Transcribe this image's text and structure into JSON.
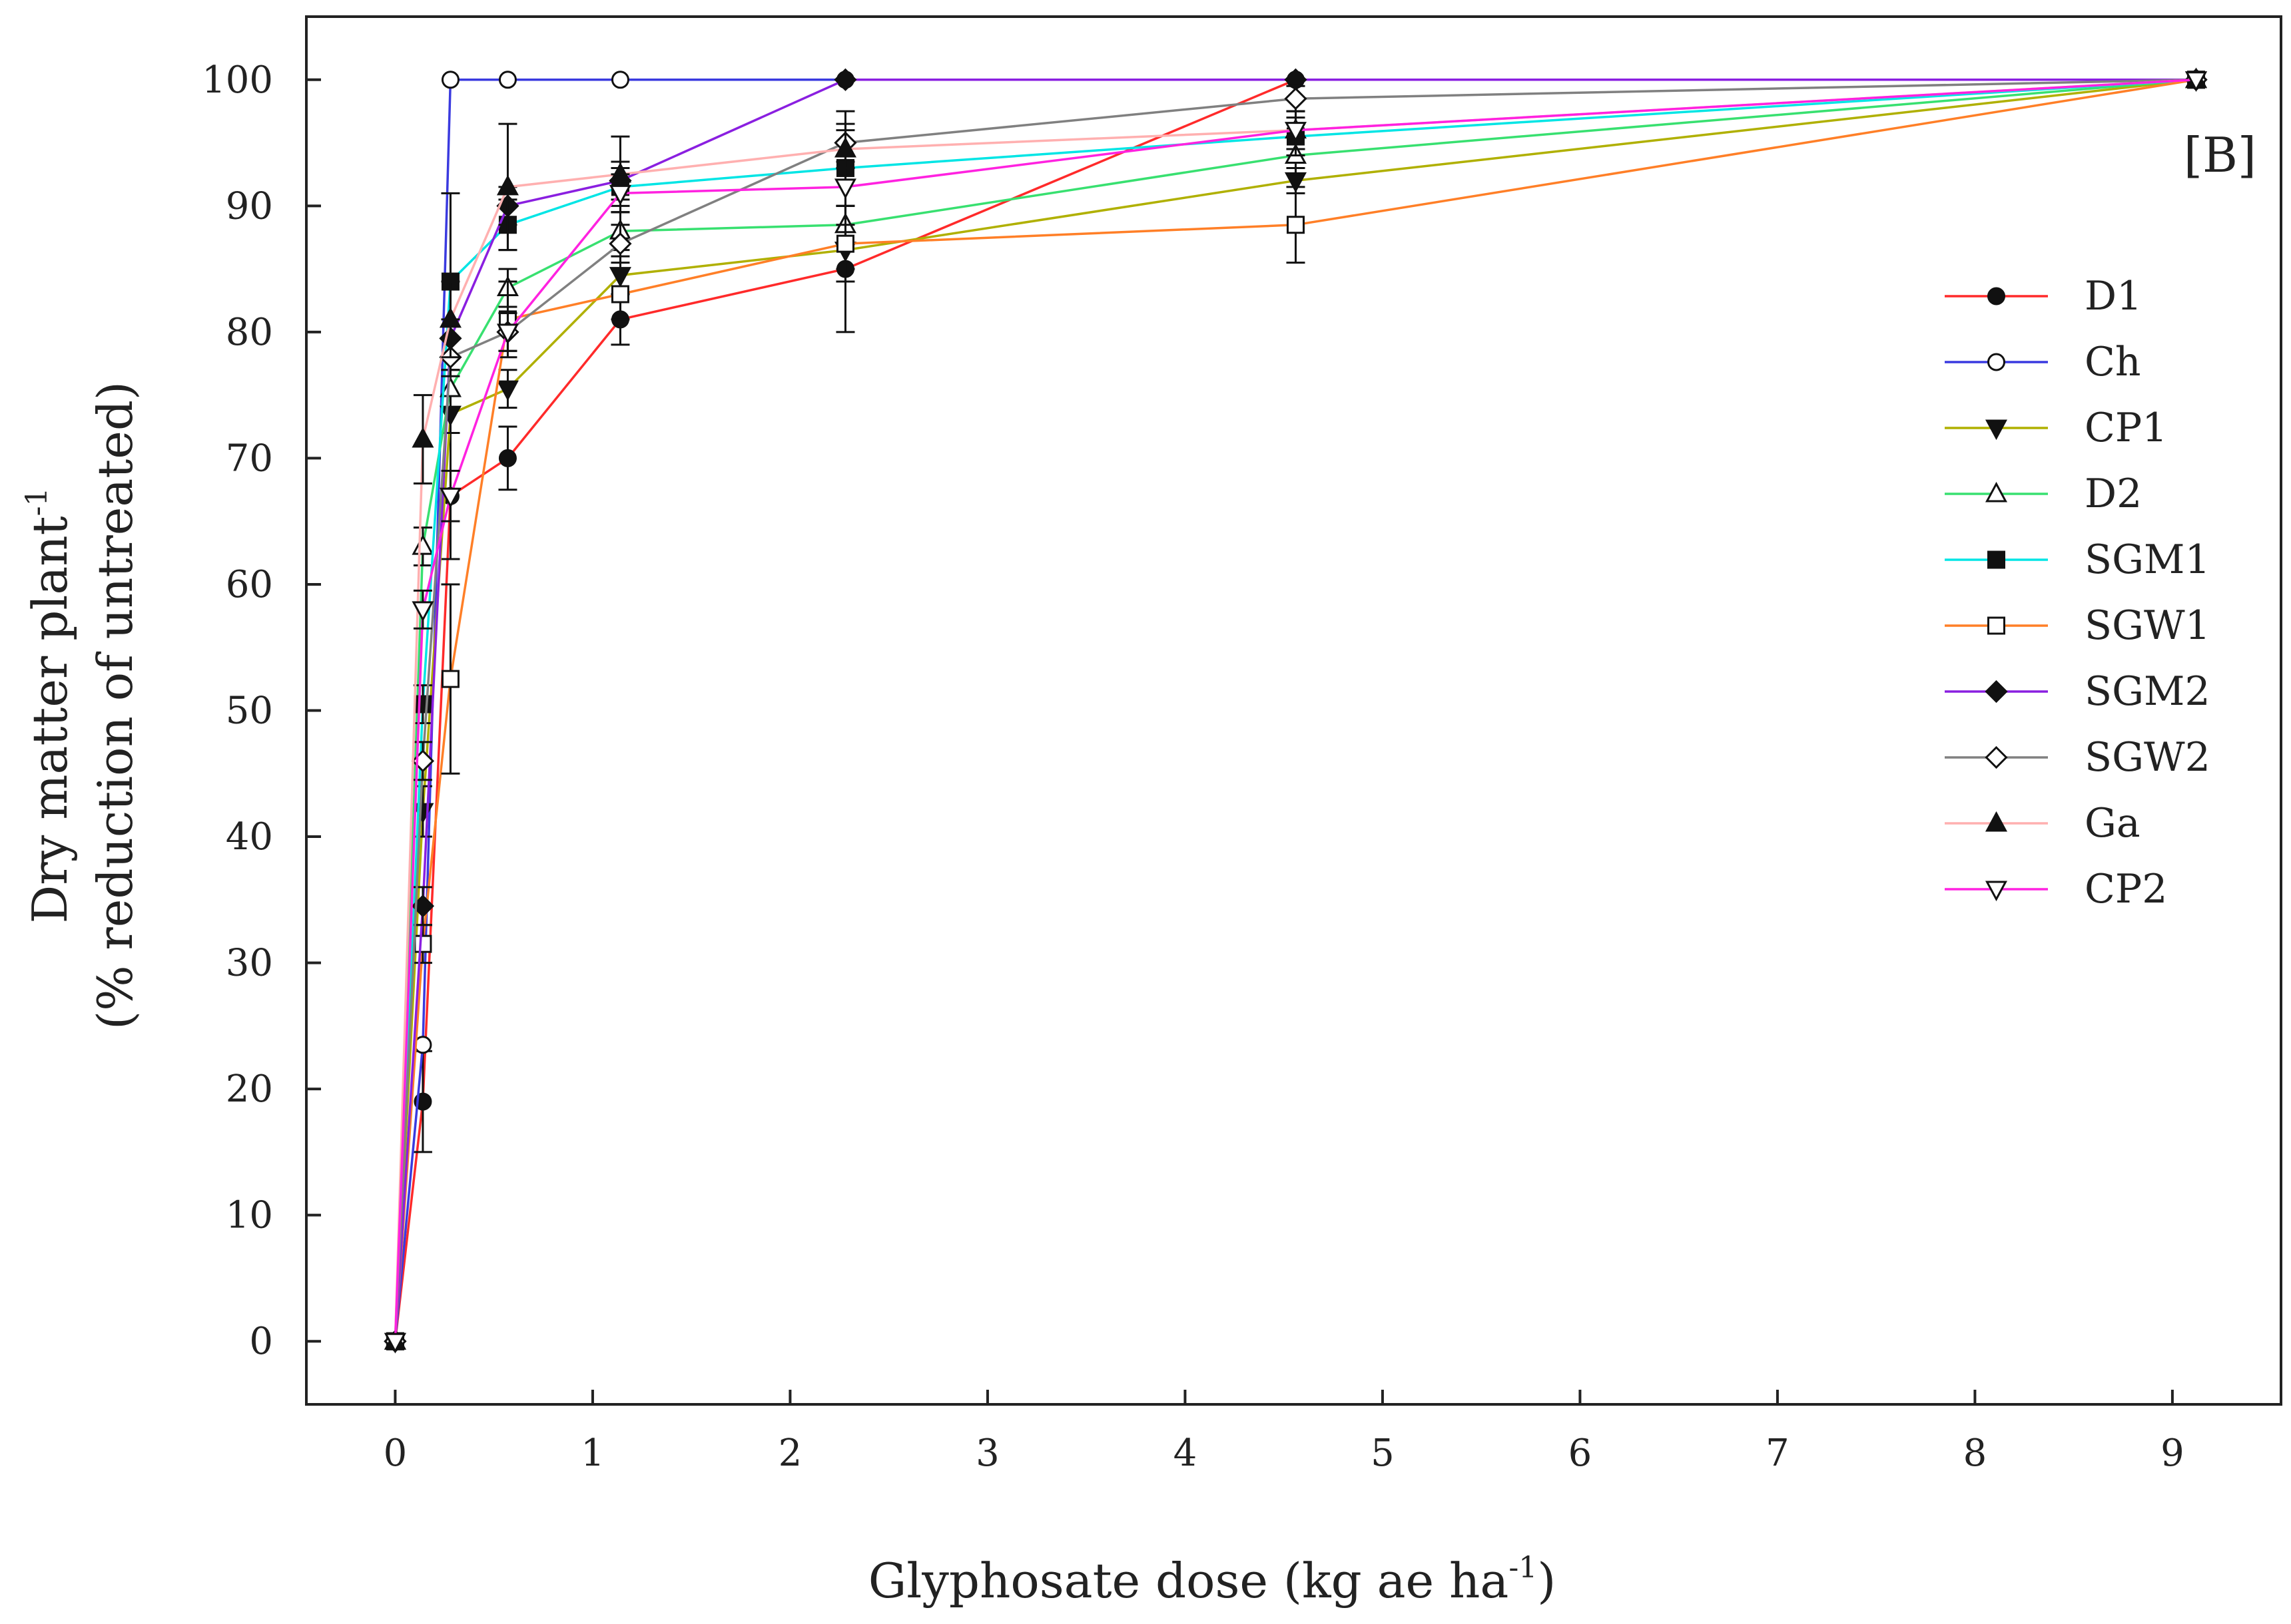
{
  "chart_data": {
    "type": "line",
    "panel_label": "[B]",
    "xlabel_main": "Glyphosate dose (kg ae ha",
    "xlabel_sup": "-1",
    "xlabel_end": ")",
    "ylabel_line1_main": "Dry matter plant",
    "ylabel_line1_sup": "-1",
    "ylabel_line2": "(% reduction of untreated)",
    "xlim": [
      -0.45,
      9.55
    ],
    "ylim": [
      -5,
      105
    ],
    "xticks": [
      0,
      1,
      2,
      3,
      4,
      5,
      6,
      7,
      8,
      9
    ],
    "yticks": [
      0,
      10,
      20,
      30,
      40,
      50,
      60,
      70,
      80,
      90,
      100
    ],
    "legend_position": "right",
    "x": [
      0,
      0.14,
      0.28,
      0.57,
      1.14,
      2.28,
      4.56,
      9.12
    ],
    "series": [
      {
        "name": "D1",
        "color": "#ff2a2a",
        "marker": "circle-filled",
        "values": [
          0,
          19,
          67,
          70,
          81,
          85,
          100,
          100
        ],
        "errors": [
          0,
          4,
          5,
          2.5,
          2,
          5,
          0,
          0
        ]
      },
      {
        "name": "Ch",
        "color": "#3a3adf",
        "marker": "circle-open",
        "values": [
          0,
          23.5,
          100,
          100,
          100,
          100,
          100,
          100
        ],
        "errors": [
          0,
          0,
          0,
          0,
          0,
          0,
          0,
          0
        ]
      },
      {
        "name": "CP1",
        "color": "#b0b000",
        "marker": "tri-down-filled",
        "values": [
          0,
          42,
          73.5,
          75.5,
          84.5,
          86.5,
          92,
          100
        ],
        "errors": [
          0,
          2,
          1.5,
          1.5,
          1.5,
          1.5,
          1,
          0
        ]
      },
      {
        "name": "D2",
        "color": "#38e070",
        "marker": "tri-up-open",
        "values": [
          0,
          63,
          75.5,
          83.5,
          88,
          88.5,
          94,
          100
        ],
        "errors": [
          0,
          1.5,
          1.5,
          1.5,
          1.5,
          1.5,
          1.5,
          0
        ]
      },
      {
        "name": "SGM1",
        "color": "#00e5e5",
        "marker": "square-filled",
        "values": [
          0,
          50.5,
          84,
          88.5,
          91.5,
          93,
          95.5,
          100
        ],
        "errors": [
          0,
          1.5,
          7,
          2,
          1.5,
          4.5,
          1.5,
          0
        ]
      },
      {
        "name": "SGW1",
        "color": "#ff7f27",
        "marker": "square-open",
        "values": [
          0,
          31.5,
          52.5,
          81,
          83,
          87,
          88.5,
          100
        ],
        "errors": [
          0,
          1.5,
          7.5,
          3,
          2,
          3,
          3,
          0
        ]
      },
      {
        "name": "SGM2",
        "color": "#8a1fe0",
        "marker": "diamond-filled",
        "values": [
          0,
          34.5,
          79.5,
          90,
          92,
          100,
          100,
          100
        ],
        "errors": [
          0,
          1.5,
          1.5,
          1.5,
          1.5,
          0,
          0,
          0
        ]
      },
      {
        "name": "SGW2",
        "color": "#808080",
        "marker": "diamond-open",
        "values": [
          0,
          46,
          78,
          80,
          87,
          95,
          98.5,
          100
        ],
        "errors": [
          0,
          1.5,
          1.5,
          1.5,
          1.5,
          1.5,
          1,
          0
        ]
      },
      {
        "name": "Ga",
        "color": "#ffb0b0",
        "marker": "tri-up-filled",
        "values": [
          0,
          71.5,
          81,
          91.5,
          92.5,
          94.5,
          96,
          100
        ],
        "errors": [
          0,
          3.5,
          3,
          5,
          3,
          1.5,
          1.5,
          0
        ]
      },
      {
        "name": "CP2",
        "color": "#ff22e0",
        "marker": "tri-down-open",
        "values": [
          0,
          58,
          67,
          80,
          91,
          91.5,
          96,
          100
        ],
        "errors": [
          0,
          1.5,
          2,
          1.5,
          1.5,
          1.5,
          1.5,
          0
        ]
      }
    ]
  }
}
